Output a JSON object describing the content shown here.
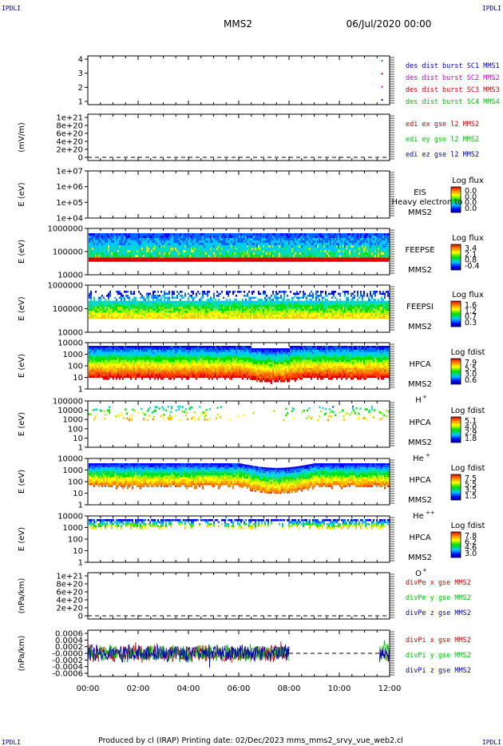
{
  "header": {
    "corner_left": "IPDLI",
    "corner_right": "IPDLI",
    "spacecraft": "MMS2",
    "date": "06/Jul/2020 00:00"
  },
  "footer": {
    "corner_left": "IPDLI",
    "corner_right": "IPDLI",
    "text": "Produced by cl (IRAP)   Printing date: 02/Dec/2023   mms_mms2_srvy_vue_web2.cl"
  },
  "colors": {
    "mms1": "#0000c0",
    "mms2": "#d000d0",
    "mms3": "#d00000",
    "mms4": "#00c000",
    "x": "#d00000",
    "y": "#00c000",
    "z": "#0000c0"
  },
  "chart_data": {
    "type": "multi-panel time series",
    "xaxis": {
      "ticks": [
        "00:00",
        "02:00",
        "04:00",
        "06:00",
        "08:00",
        "10:00",
        "12:00"
      ],
      "range_hours": [
        0,
        12
      ]
    },
    "panels": [
      {
        "id": "burst",
        "type": "scatter",
        "ylabel": "",
        "ticks": [
          "4",
          "3",
          "2",
          "1"
        ],
        "series": [
          {
            "name": "des dist burst SC1 MMS1",
            "color_key": "mms1",
            "value": 1,
            "times_hours": [
              11.7
            ]
          },
          {
            "name": "des dist burst SC2 MMS2",
            "color_key": "mms2",
            "value": 2,
            "times_hours": [
              11.7
            ]
          },
          {
            "name": "des dist burst SC3 MMS3",
            "color_key": "mms3",
            "value": 3,
            "times_hours": [
              11.7
            ]
          },
          {
            "name": "des dist burst SC4 MMS4",
            "color_key": "mms4",
            "value": 4,
            "times_hours": [
              11.7
            ]
          }
        ]
      },
      {
        "id": "edi",
        "type": "line",
        "ylabel": "(mV/m)",
        "ticks": [
          "1e+21",
          "8e+20",
          "6e+20",
          "4e+20",
          "2e+20",
          "0"
        ],
        "series": [
          {
            "name": "edi ex gse l2 MMS2",
            "color_key": "x"
          },
          {
            "name": "edi ey gse l2 MMS2",
            "color_key": "y"
          },
          {
            "name": "edi ez gse l2 MMS2",
            "color_key": "z"
          }
        ]
      },
      {
        "id": "eis",
        "type": "heatmap",
        "ylabel": "E (eV)",
        "ticks": [
          "1e+07",
          "1e+06",
          "1e+05",
          "1e+04"
        ],
        "instrument": "EIS",
        "subtitle": "Heavy electron to",
        "sc": "MMS2",
        "cbar_title": "Log flux",
        "cbar_ticks": [
          "0.0",
          "0.0",
          "0.0",
          "0.0"
        ]
      },
      {
        "id": "feepse",
        "type": "heatmap",
        "ylabel": "E (eV)",
        "ticks": [
          "1000000",
          "100000",
          "10000"
        ],
        "instrument": "FEEPSE",
        "sc": "MMS2",
        "cbar_title": "Log flux",
        "cbar_ticks": [
          "3.4",
          "2.1",
          "0.8",
          "-0.4"
        ]
      },
      {
        "id": "feepsi",
        "type": "heatmap",
        "ylabel": "E (eV)",
        "ticks": [
          "1000000",
          "100000",
          "10000"
        ],
        "instrument": "FEEPSI",
        "sc": "MMS2",
        "cbar_title": "Log flux",
        "cbar_ticks": [
          "1.6",
          "1.2",
          "0.7",
          "0.3"
        ]
      },
      {
        "id": "hpca_h",
        "type": "heatmap",
        "ylabel": "E (eV)",
        "ticks": [
          "10000",
          "1000",
          "100",
          "10",
          "1"
        ],
        "instrument": "HPCA",
        "sc": "MMS2",
        "species": "H",
        "charge": "+",
        "cbar_title": "Log fdist",
        "cbar_ticks": [
          "7.9",
          "5.5",
          "3.0",
          "0.6"
        ]
      },
      {
        "id": "hpca_he1",
        "type": "heatmap",
        "ylabel": "E (eV)",
        "ticks": [
          "100000",
          "10000",
          "1000",
          "100",
          "10",
          "1"
        ],
        "instrument": "HPCA",
        "sc": "MMS2",
        "species": "He",
        "charge": "+",
        "cbar_title": "Log fdist",
        "cbar_ticks": [
          "5.1",
          "4.0",
          "2.9",
          "1.8"
        ]
      },
      {
        "id": "hpca_he2",
        "type": "heatmap",
        "ylabel": "E (eV)",
        "ticks": [
          "10000",
          "1000",
          "100",
          "10",
          "1"
        ],
        "instrument": "HPCA",
        "sc": "MMS2",
        "species": "He",
        "charge": "++",
        "cbar_title": "Log fdist",
        "cbar_ticks": [
          "7.5",
          "5.5",
          "3.5",
          "1.5"
        ]
      },
      {
        "id": "hpca_o",
        "type": "heatmap",
        "ylabel": "E (eV)",
        "ticks": [
          "10000",
          "1000",
          "100",
          "10",
          "1"
        ],
        "instrument": "HPCA",
        "sc": "MMS2",
        "species": "O",
        "charge": "+",
        "cbar_title": "Log fdist",
        "cbar_ticks": [
          "7.8",
          "6.2",
          "4.6",
          "3.0"
        ]
      },
      {
        "id": "divpe",
        "type": "line",
        "ylabel": "(nPa/km)",
        "ticks": [
          "1e+21",
          "8e+20",
          "6e+20",
          "4e+20",
          "2e+20",
          "0"
        ],
        "series": [
          {
            "name": "divPe x gse MMS2",
            "color_key": "x"
          },
          {
            "name": "divPe y gse MMS2",
            "color_key": "y"
          },
          {
            "name": "divPe z gse MMS2",
            "color_key": "z"
          }
        ]
      },
      {
        "id": "divpi",
        "type": "line",
        "ylabel": "(nPa/km)",
        "ticks": [
          "0.0006",
          "0.0004",
          "0.0002",
          "-0.0000",
          "-0.0002",
          "-0.0004",
          "-0.0006"
        ],
        "data_intervals_hours": [
          [
            0,
            8.0
          ],
          [
            11.6,
            12
          ]
        ],
        "series": [
          {
            "name": "divPi x gse MMS2",
            "color_key": "x"
          },
          {
            "name": "divPi y gse MMS2",
            "color_key": "y"
          },
          {
            "name": "divPi z gse MMS2",
            "color_key": "z"
          }
        ]
      }
    ]
  }
}
